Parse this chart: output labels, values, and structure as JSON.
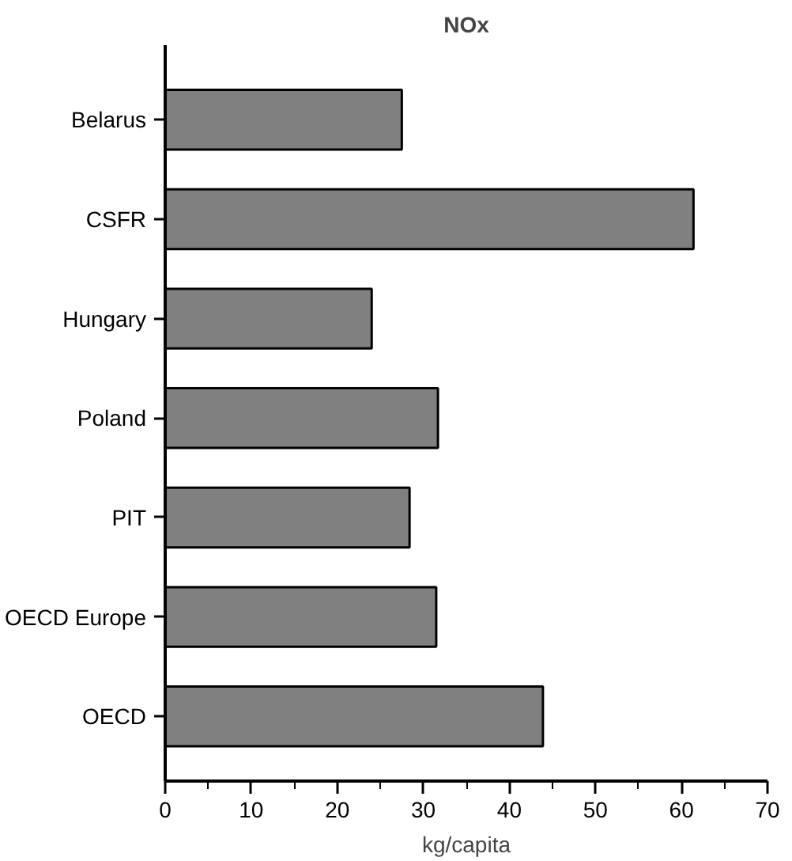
{
  "chart_data": {
    "type": "bar",
    "orientation": "horizontal",
    "title": "NOx",
    "xlabel": "kg/capita",
    "categories": [
      "Belarus",
      "CSFR",
      "Hungary",
      "Poland",
      "PIT",
      "OECD Europe",
      "OECD"
    ],
    "values": [
      27.5,
      61.4,
      24.0,
      31.7,
      28.4,
      31.5,
      43.9
    ],
    "color": "#808080",
    "xlim": [
      0,
      70
    ],
    "xticks": [
      0,
      {
        "value": 5,
        "label": null
      },
      10,
      {
        "value": 15,
        "label": null
      },
      20,
      {
        "value": 25,
        "label": null
      },
      30,
      {
        "value": 35,
        "label": null
      },
      40,
      {
        "value": 45,
        "label": null
      },
      50,
      {
        "value": 55,
        "label": null
      },
      60,
      {
        "value": 65,
        "label": null
      },
      70
    ],
    "grid": false
  }
}
